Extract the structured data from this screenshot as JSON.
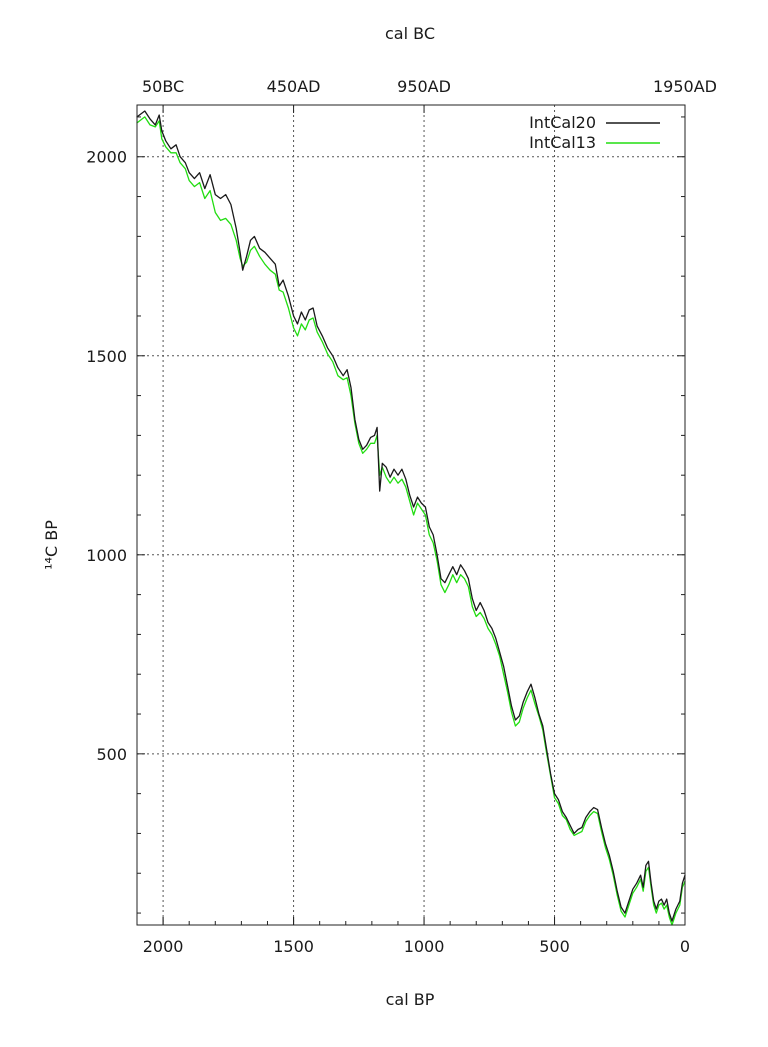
{
  "chart_data": {
    "type": "line",
    "xlabel": "cal BP",
    "ylabel": "¹⁴C BP",
    "x2label": "cal BC",
    "xlim": [
      2100,
      0
    ],
    "ylim": [
      70,
      2130
    ],
    "xticks": [
      {
        "value": 2000,
        "label": "2000"
      },
      {
        "value": 1500,
        "label": "1500"
      },
      {
        "value": 1000,
        "label": "1000"
      },
      {
        "value": 500,
        "label": "500"
      },
      {
        "value": 0,
        "label": "0"
      }
    ],
    "x2ticks": [
      {
        "value": 2000,
        "label": "50BC"
      },
      {
        "value": 1500,
        "label": "450AD"
      },
      {
        "value": 1000,
        "label": "950AD"
      },
      {
        "value": 0,
        "label": "1950AD"
      }
    ],
    "yticks": [
      {
        "value": 2000,
        "label": "2000"
      },
      {
        "value": 1500,
        "label": "1500"
      },
      {
        "value": 1000,
        "label": "1000"
      },
      {
        "value": 500,
        "label": "500"
      }
    ],
    "grid": true,
    "legend_position": "top-right",
    "series": [
      {
        "name": "IntCal20",
        "color": "#1a1a1a",
        "points": [
          [
            2100,
            2100
          ],
          [
            2070,
            2115
          ],
          [
            2050,
            2095
          ],
          [
            2030,
            2080
          ],
          [
            2015,
            2105
          ],
          [
            2005,
            2065
          ],
          [
            1990,
            2040
          ],
          [
            1970,
            2020
          ],
          [
            1950,
            2030
          ],
          [
            1935,
            2000
          ],
          [
            1915,
            1985
          ],
          [
            1900,
            1960
          ],
          [
            1880,
            1945
          ],
          [
            1860,
            1960
          ],
          [
            1840,
            1920
          ],
          [
            1820,
            1955
          ],
          [
            1800,
            1905
          ],
          [
            1780,
            1895
          ],
          [
            1760,
            1905
          ],
          [
            1740,
            1880
          ],
          [
            1720,
            1820
          ],
          [
            1705,
            1760
          ],
          [
            1695,
            1715
          ],
          [
            1680,
            1750
          ],
          [
            1665,
            1790
          ],
          [
            1650,
            1800
          ],
          [
            1630,
            1770
          ],
          [
            1610,
            1760
          ],
          [
            1590,
            1745
          ],
          [
            1570,
            1730
          ],
          [
            1555,
            1675
          ],
          [
            1540,
            1690
          ],
          [
            1520,
            1650
          ],
          [
            1500,
            1600
          ],
          [
            1485,
            1580
          ],
          [
            1470,
            1610
          ],
          [
            1455,
            1590
          ],
          [
            1440,
            1615
          ],
          [
            1425,
            1620
          ],
          [
            1410,
            1575
          ],
          [
            1390,
            1550
          ],
          [
            1370,
            1520
          ],
          [
            1350,
            1500
          ],
          [
            1330,
            1470
          ],
          [
            1310,
            1450
          ],
          [
            1295,
            1465
          ],
          [
            1280,
            1420
          ],
          [
            1265,
            1340
          ],
          [
            1250,
            1290
          ],
          [
            1235,
            1265
          ],
          [
            1220,
            1275
          ],
          [
            1205,
            1295
          ],
          [
            1190,
            1300
          ],
          [
            1180,
            1320
          ],
          [
            1170,
            1160
          ],
          [
            1160,
            1230
          ],
          [
            1145,
            1220
          ],
          [
            1130,
            1195
          ],
          [
            1115,
            1215
          ],
          [
            1100,
            1200
          ],
          [
            1085,
            1215
          ],
          [
            1070,
            1190
          ],
          [
            1055,
            1150
          ],
          [
            1040,
            1120
          ],
          [
            1025,
            1145
          ],
          [
            1010,
            1130
          ],
          [
            995,
            1120
          ],
          [
            980,
            1070
          ],
          [
            965,
            1050
          ],
          [
            950,
            1000
          ],
          [
            935,
            940
          ],
          [
            920,
            930
          ],
          [
            905,
            950
          ],
          [
            890,
            970
          ],
          [
            875,
            950
          ],
          [
            860,
            975
          ],
          [
            845,
            960
          ],
          [
            830,
            940
          ],
          [
            815,
            890
          ],
          [
            800,
            860
          ],
          [
            785,
            880
          ],
          [
            770,
            860
          ],
          [
            755,
            830
          ],
          [
            740,
            815
          ],
          [
            725,
            790
          ],
          [
            710,
            755
          ],
          [
            695,
            720
          ],
          [
            680,
            670
          ],
          [
            665,
            620
          ],
          [
            650,
            585
          ],
          [
            635,
            595
          ],
          [
            620,
            630
          ],
          [
            605,
            655
          ],
          [
            590,
            675
          ],
          [
            575,
            640
          ],
          [
            560,
            600
          ],
          [
            545,
            570
          ],
          [
            530,
            510
          ],
          [
            515,
            450
          ],
          [
            500,
            400
          ],
          [
            485,
            385
          ],
          [
            470,
            355
          ],
          [
            455,
            340
          ],
          [
            440,
            320
          ],
          [
            425,
            300
          ],
          [
            410,
            310
          ],
          [
            395,
            315
          ],
          [
            380,
            340
          ],
          [
            365,
            355
          ],
          [
            350,
            365
          ],
          [
            335,
            360
          ],
          [
            320,
            315
          ],
          [
            305,
            275
          ],
          [
            290,
            245
          ],
          [
            275,
            205
          ],
          [
            260,
            155
          ],
          [
            245,
            115
          ],
          [
            230,
            100
          ],
          [
            215,
            130
          ],
          [
            200,
            160
          ],
          [
            185,
            175
          ],
          [
            170,
            195
          ],
          [
            160,
            165
          ],
          [
            150,
            220
          ],
          [
            140,
            230
          ],
          [
            130,
            175
          ],
          [
            120,
            130
          ],
          [
            110,
            110
          ],
          [
            100,
            130
          ],
          [
            90,
            135
          ],
          [
            80,
            120
          ],
          [
            70,
            135
          ],
          [
            60,
            100
          ],
          [
            50,
            80
          ],
          [
            35,
            110
          ],
          [
            20,
            130
          ],
          [
            10,
            175
          ],
          [
            0,
            195
          ]
        ]
      },
      {
        "name": "IntCal13",
        "color": "#22dd11",
        "points": [
          [
            2100,
            2085
          ],
          [
            2070,
            2100
          ],
          [
            2050,
            2080
          ],
          [
            2030,
            2075
          ],
          [
            2015,
            2090
          ],
          [
            2005,
            2045
          ],
          [
            1990,
            2025
          ],
          [
            1970,
            2010
          ],
          [
            1950,
            2010
          ],
          [
            1935,
            1985
          ],
          [
            1915,
            1970
          ],
          [
            1900,
            1940
          ],
          [
            1880,
            1925
          ],
          [
            1860,
            1935
          ],
          [
            1840,
            1895
          ],
          [
            1820,
            1915
          ],
          [
            1800,
            1860
          ],
          [
            1780,
            1840
          ],
          [
            1760,
            1845
          ],
          [
            1740,
            1830
          ],
          [
            1720,
            1790
          ],
          [
            1705,
            1745
          ],
          [
            1695,
            1725
          ],
          [
            1680,
            1735
          ],
          [
            1665,
            1765
          ],
          [
            1650,
            1775
          ],
          [
            1630,
            1750
          ],
          [
            1610,
            1730
          ],
          [
            1590,
            1715
          ],
          [
            1570,
            1705
          ],
          [
            1555,
            1665
          ],
          [
            1540,
            1660
          ],
          [
            1520,
            1620
          ],
          [
            1500,
            1570
          ],
          [
            1485,
            1550
          ],
          [
            1470,
            1580
          ],
          [
            1455,
            1565
          ],
          [
            1440,
            1590
          ],
          [
            1425,
            1595
          ],
          [
            1410,
            1560
          ],
          [
            1390,
            1535
          ],
          [
            1370,
            1505
          ],
          [
            1350,
            1485
          ],
          [
            1330,
            1450
          ],
          [
            1310,
            1440
          ],
          [
            1295,
            1445
          ],
          [
            1280,
            1400
          ],
          [
            1265,
            1330
          ],
          [
            1250,
            1280
          ],
          [
            1235,
            1255
          ],
          [
            1220,
            1265
          ],
          [
            1205,
            1280
          ],
          [
            1190,
            1280
          ],
          [
            1180,
            1300
          ],
          [
            1170,
            1200
          ],
          [
            1160,
            1220
          ],
          [
            1145,
            1195
          ],
          [
            1130,
            1180
          ],
          [
            1115,
            1195
          ],
          [
            1100,
            1180
          ],
          [
            1085,
            1190
          ],
          [
            1070,
            1170
          ],
          [
            1055,
            1135
          ],
          [
            1040,
            1100
          ],
          [
            1025,
            1130
          ],
          [
            1010,
            1115
          ],
          [
            995,
            1100
          ],
          [
            980,
            1050
          ],
          [
            965,
            1030
          ],
          [
            950,
            985
          ],
          [
            935,
            925
          ],
          [
            920,
            905
          ],
          [
            905,
            925
          ],
          [
            890,
            950
          ],
          [
            875,
            930
          ],
          [
            860,
            950
          ],
          [
            845,
            940
          ],
          [
            830,
            920
          ],
          [
            815,
            870
          ],
          [
            800,
            845
          ],
          [
            785,
            855
          ],
          [
            770,
            840
          ],
          [
            755,
            815
          ],
          [
            740,
            800
          ],
          [
            725,
            775
          ],
          [
            710,
            745
          ],
          [
            695,
            700
          ],
          [
            680,
            655
          ],
          [
            665,
            605
          ],
          [
            650,
            570
          ],
          [
            635,
            580
          ],
          [
            620,
            615
          ],
          [
            605,
            640
          ],
          [
            590,
            660
          ],
          [
            575,
            625
          ],
          [
            560,
            595
          ],
          [
            545,
            560
          ],
          [
            530,
            500
          ],
          [
            515,
            445
          ],
          [
            500,
            390
          ],
          [
            485,
            375
          ],
          [
            470,
            345
          ],
          [
            455,
            335
          ],
          [
            440,
            310
          ],
          [
            425,
            295
          ],
          [
            410,
            300
          ],
          [
            395,
            305
          ],
          [
            380,
            330
          ],
          [
            365,
            345
          ],
          [
            350,
            355
          ],
          [
            335,
            350
          ],
          [
            320,
            305
          ],
          [
            305,
            265
          ],
          [
            290,
            235
          ],
          [
            275,
            195
          ],
          [
            260,
            145
          ],
          [
            245,
            105
          ],
          [
            230,
            90
          ],
          [
            215,
            120
          ],
          [
            200,
            150
          ],
          [
            185,
            165
          ],
          [
            170,
            185
          ],
          [
            160,
            155
          ],
          [
            150,
            205
          ],
          [
            140,
            215
          ],
          [
            130,
            165
          ],
          [
            120,
            120
          ],
          [
            110,
            100
          ],
          [
            100,
            120
          ],
          [
            90,
            125
          ],
          [
            80,
            110
          ],
          [
            70,
            120
          ],
          [
            60,
            90
          ],
          [
            50,
            70
          ],
          [
            35,
            100
          ],
          [
            20,
            120
          ],
          [
            10,
            165
          ],
          [
            0,
            180
          ]
        ]
      }
    ]
  }
}
